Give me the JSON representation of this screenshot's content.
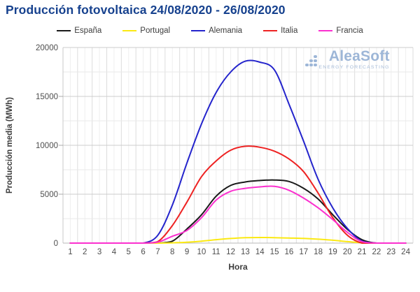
{
  "logo": {
    "name": "AleaSoft",
    "tagline": "ENERGY FORECASTING"
  },
  "chart_data": {
    "type": "line",
    "title": "Producción fotovoltaica 24/08/2020 - 26/08/2020",
    "xlabel": "Hora",
    "ylabel": "Producción media (MWh)",
    "x": [
      1,
      2,
      3,
      4,
      5,
      6,
      7,
      8,
      9,
      10,
      11,
      12,
      13,
      14,
      15,
      16,
      17,
      18,
      19,
      20,
      21,
      22,
      23,
      24
    ],
    "ylim": [
      0,
      20000
    ],
    "yticks": [
      0,
      5000,
      10000,
      15000,
      20000
    ],
    "grid": true,
    "legend_position": "top",
    "title_color": "#16418e",
    "series": [
      {
        "name": "España",
        "color": "#1a1a1a",
        "values": [
          0,
          0,
          0,
          0,
          0,
          0,
          0,
          200,
          1450,
          2900,
          4800,
          5900,
          6250,
          6400,
          6450,
          6300,
          5600,
          4500,
          2900,
          1400,
          350,
          0,
          0,
          0
        ]
      },
      {
        "name": "Portugal",
        "color": "#fbe912",
        "values": [
          0,
          0,
          0,
          0,
          0,
          0,
          0,
          30,
          90,
          200,
          350,
          470,
          550,
          570,
          560,
          520,
          480,
          400,
          290,
          150,
          40,
          0,
          0,
          0
        ]
      },
      {
        "name": "Alemania",
        "color": "#2424cc",
        "values": [
          0,
          0,
          0,
          0,
          0,
          0,
          800,
          3900,
          8200,
          12200,
          15400,
          17500,
          18600,
          18500,
          17700,
          14200,
          10400,
          6500,
          3600,
          1500,
          200,
          0,
          0,
          0
        ]
      },
      {
        "name": "Italia",
        "color": "#ee2222",
        "values": [
          0,
          0,
          0,
          0,
          0,
          0,
          150,
          1800,
          4200,
          6800,
          8400,
          9500,
          9900,
          9800,
          9400,
          8600,
          7300,
          5100,
          2600,
          800,
          0,
          0,
          0,
          0
        ]
      },
      {
        "name": "Francia",
        "color": "#fb30cf",
        "values": [
          0,
          0,
          0,
          0,
          0,
          0,
          100,
          700,
          1300,
          2600,
          4400,
          5300,
          5600,
          5750,
          5800,
          5400,
          4600,
          3600,
          2400,
          1100,
          150,
          0,
          0,
          0
        ]
      }
    ]
  }
}
